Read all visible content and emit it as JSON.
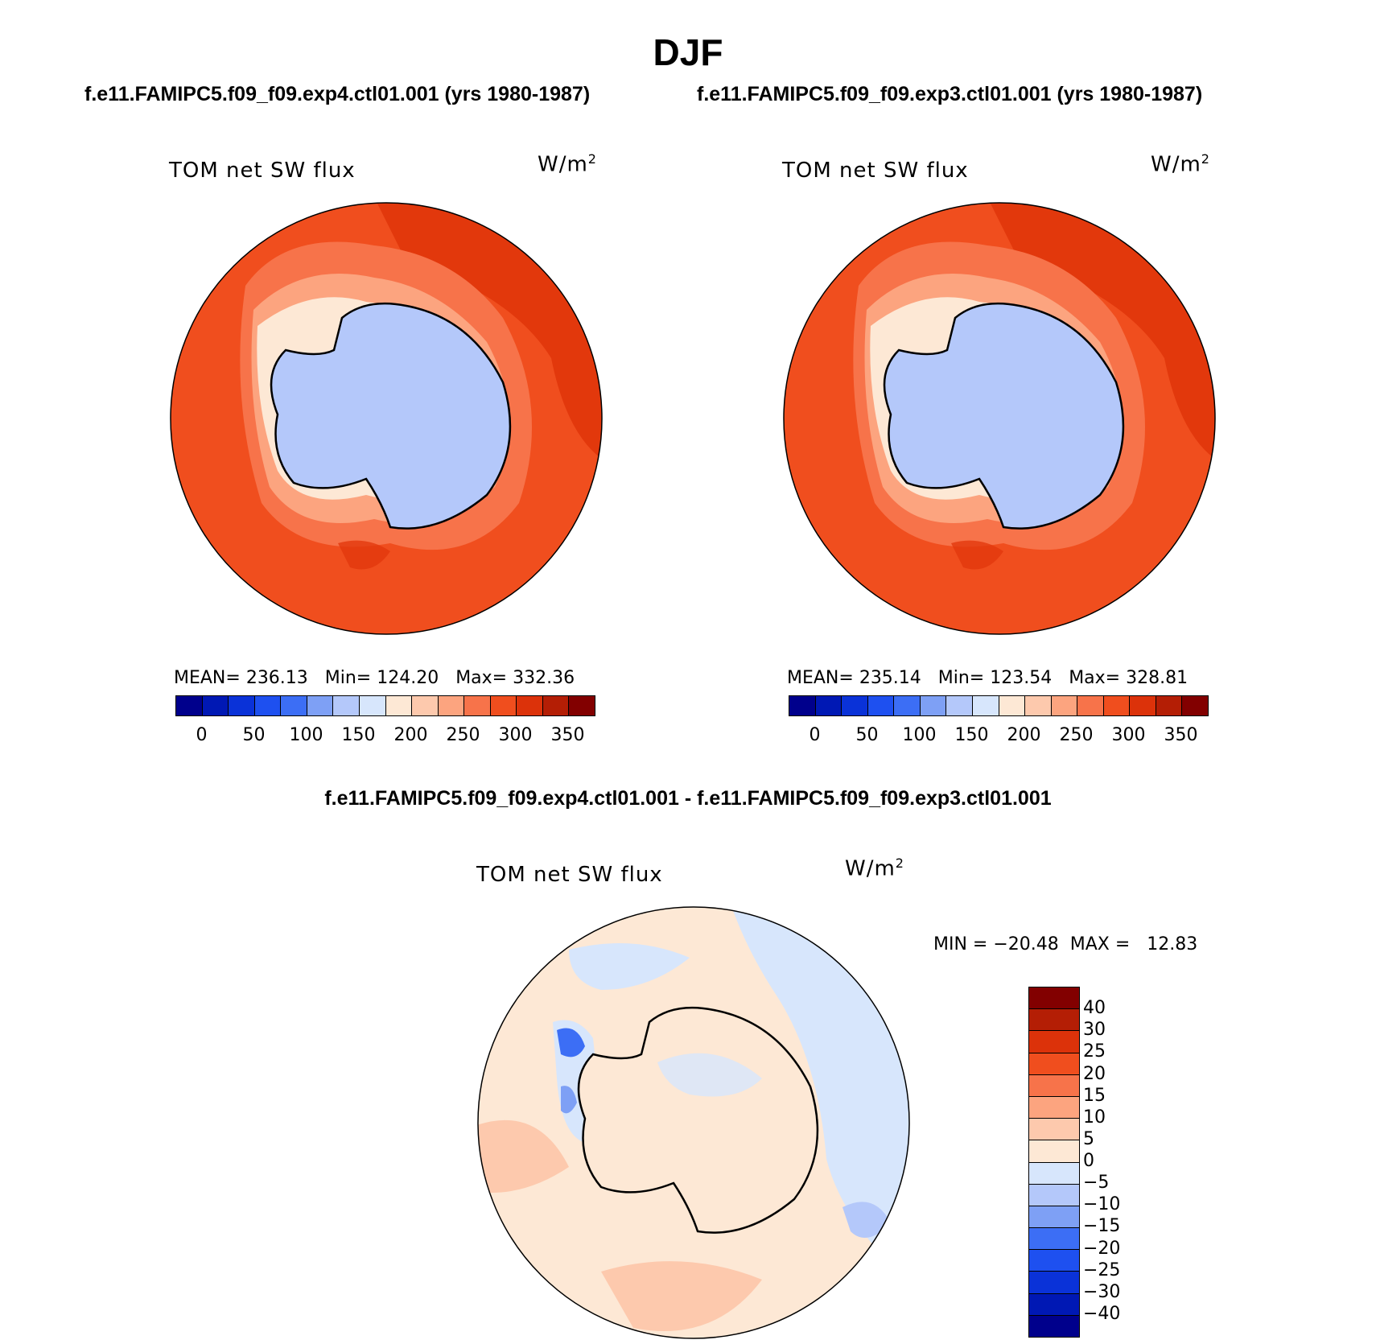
{
  "title": "DJF",
  "case1": "f.e11.FAMIPC5.f09_f09.exp4.ctl01.001 (yrs 1980-1987)",
  "case2": "f.e11.FAMIPC5.f09_f09.exp3.ctl01.001 (yrs 1980-1987)",
  "diff_title": "f.e11.FAMIPC5.f09_f09.exp4.ctl01.001 - f.e11.FAMIPC5.f09_f09.exp3.ctl01.001",
  "variable": "TOM net SW flux",
  "units": "W/m",
  "units_sup": "2",
  "panel1": {
    "stats": "MEAN= 236.13   Min= 124.20   Max= 332.36"
  },
  "panel2": {
    "stats": "MEAN= 235.14   Min= 123.54   Max= 328.81"
  },
  "panel3": {
    "stats": "MIN = −20.48  MAX =   12.83"
  },
  "colorbar_abs": {
    "ticks": [
      "0",
      "50",
      "100",
      "150",
      "200",
      "250",
      "300",
      "350"
    ],
    "colors": [
      "#00008c",
      "#0018b4",
      "#0a32d8",
      "#1e50f0",
      "#3c6ef5",
      "#7ea0f5",
      "#b4c8fa",
      "#d7e6fc",
      "#fde8d5",
      "#fdc9ad",
      "#fca47f",
      "#f7734a",
      "#f04e1e",
      "#dc320a",
      "#b41e05",
      "#820000"
    ]
  },
  "colorbar_diff": {
    "ticks": [
      "40",
      "30",
      "25",
      "20",
      "15",
      "10",
      "5",
      "0",
      "−5",
      "−10",
      "−15",
      "−20",
      "−25",
      "−30",
      "−40"
    ],
    "colors": [
      "#820000",
      "#b41e05",
      "#dc320a",
      "#f04e1e",
      "#f7734a",
      "#fca47f",
      "#fdc9ad",
      "#fde8d5",
      "#d7e6fc",
      "#b4c8fa",
      "#7ea0f5",
      "#3c6ef5",
      "#1e50f0",
      "#0a32d8",
      "#0018b4",
      "#00008c"
    ]
  },
  "colors": {
    "ocean_high": "#e2380c",
    "ocean_mid": "#f04e1e",
    "ice_edge": "#fca47f",
    "continent": "#b4c8fa",
    "diff_pos": "#fde8d5",
    "diff_neg": "#d7e6fc"
  }
}
